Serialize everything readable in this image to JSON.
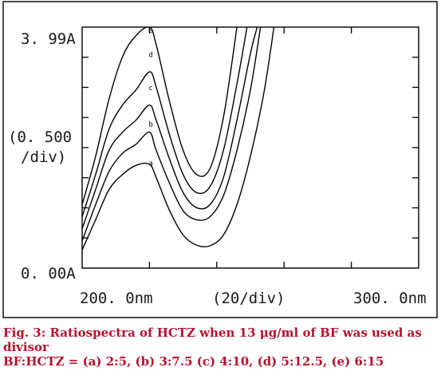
{
  "chart_data": {
    "type": "line",
    "x_range": [
      200.0,
      300.0
    ],
    "y_range": [
      0.0,
      3.99
    ],
    "x_ticks": {
      "left": "200. 0nm",
      "center": "(20/div)",
      "right": "300. 0nm"
    },
    "y_ticks": {
      "top": "3. 99A",
      "mid_line1": "(0. 500",
      "mid_line2": "/div)",
      "bottom": "0. 00A"
    },
    "series": [
      {
        "name": "a",
        "points": [
          [
            200,
            0.3
          ],
          [
            204,
            0.8
          ],
          [
            208,
            1.3
          ],
          [
            212,
            1.55
          ],
          [
            216,
            1.7
          ],
          [
            220,
            1.72
          ],
          [
            222,
            1.5
          ],
          [
            226,
            0.95
          ],
          [
            230,
            0.55
          ],
          [
            234,
            0.38
          ],
          [
            238,
            0.37
          ],
          [
            242,
            0.55
          ],
          [
            246,
            1.05
          ],
          [
            250,
            1.85
          ],
          [
            254,
            2.9
          ],
          [
            257,
            3.99
          ]
        ]
      },
      {
        "name": "b",
        "points": [
          [
            200,
            0.45
          ],
          [
            204,
            1.05
          ],
          [
            208,
            1.6
          ],
          [
            212,
            1.9
          ],
          [
            216,
            2.05
          ],
          [
            220,
            2.25
          ],
          [
            222,
            1.95
          ],
          [
            226,
            1.4
          ],
          [
            230,
            0.95
          ],
          [
            234,
            0.8
          ],
          [
            238,
            0.85
          ],
          [
            242,
            1.2
          ],
          [
            246,
            1.95
          ],
          [
            250,
            2.95
          ],
          [
            253,
            3.99
          ]
        ]
      },
      {
        "name": "c",
        "points": [
          [
            200,
            0.65
          ],
          [
            204,
            1.3
          ],
          [
            208,
            1.95
          ],
          [
            212,
            2.25
          ],
          [
            216,
            2.45
          ],
          [
            220,
            2.7
          ],
          [
            222,
            2.45
          ],
          [
            226,
            1.8
          ],
          [
            230,
            1.25
          ],
          [
            234,
            1.0
          ],
          [
            238,
            1.05
          ],
          [
            242,
            1.5
          ],
          [
            246,
            2.45
          ],
          [
            250,
            3.55
          ],
          [
            252,
            3.99
          ]
        ]
      },
      {
        "name": "d",
        "points": [
          [
            200,
            0.85
          ],
          [
            204,
            1.55
          ],
          [
            208,
            2.3
          ],
          [
            212,
            2.7
          ],
          [
            216,
            2.95
          ],
          [
            220,
            3.25
          ],
          [
            222,
            3.0
          ],
          [
            226,
            2.2
          ],
          [
            230,
            1.55
          ],
          [
            234,
            1.25
          ],
          [
            238,
            1.35
          ],
          [
            242,
            1.95
          ],
          [
            246,
            3.05
          ],
          [
            249,
            3.99
          ]
        ]
      },
      {
        "name": "e",
        "points": [
          [
            200,
            1.05
          ],
          [
            204,
            1.85
          ],
          [
            208,
            2.8
          ],
          [
            212,
            3.5
          ],
          [
            216,
            3.85
          ],
          [
            220,
            3.99
          ],
          [
            222,
            3.7
          ],
          [
            226,
            2.75
          ],
          [
            230,
            1.95
          ],
          [
            234,
            1.55
          ],
          [
            238,
            1.65
          ],
          [
            242,
            2.5
          ],
          [
            246,
            3.99
          ]
        ]
      }
    ],
    "series_label_positions": [
      {
        "name": "a",
        "x": 220,
        "y": 1.75
      },
      {
        "name": "b",
        "x": 220,
        "y": 2.4
      },
      {
        "name": "c",
        "x": 220,
        "y": 3.0
      },
      {
        "name": "d",
        "x": 220,
        "y": 3.55
      },
      {
        "name": "e",
        "x": 220,
        "y": 3.95
      }
    ],
    "grid": false
  },
  "caption": {
    "title": "Fig. 3: Ratiospectra of HCTZ when 13 μg/ml of BF was used as divisor",
    "subtitle": "BF:HCTZ = (a) 2:5, (b) 3:7.5 (c) 4:10, (d) 5:12.5, (e) 6:15"
  }
}
